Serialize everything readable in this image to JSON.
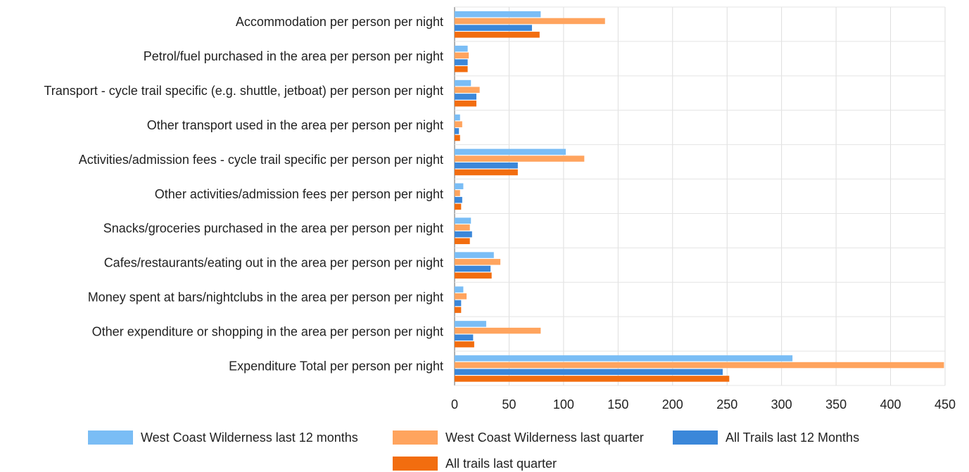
{
  "chart_data": {
    "type": "bar",
    "orientation": "horizontal",
    "title": "",
    "xlabel": "",
    "ylabel": "",
    "xlim": [
      0,
      450
    ],
    "x_ticks": [
      0,
      50,
      100,
      150,
      200,
      250,
      300,
      350,
      400,
      450
    ],
    "grid": true,
    "legend_position": "bottom",
    "categories": [
      "Accommodation per person per night",
      "Petrol/fuel purchased in the area per person per night",
      "Transport - cycle trail specific (e.g. shuttle, jetboat) per person per night",
      "Other transport used in the area per person per night",
      "Activities/admission fees - cycle trail specific per person per night",
      "Other activities/admission fees per person per night",
      "Snacks/groceries purchased in the area  per person per night",
      "Cafes/restaurants/eating out in the area per person per night",
      "Money spent at bars/nightclubs in the area per person per night",
      "Other expenditure or shopping in the area per person per night",
      "Expenditure Total per person per night"
    ],
    "series": [
      {
        "name": "West Coast Wilderness last 12 months",
        "color": "#7abdf5",
        "values": [
          79,
          12,
          15,
          5,
          102,
          8,
          15,
          36,
          8,
          29,
          310
        ]
      },
      {
        "name": "West Coast Wilderness last quarter",
        "color": "#ffa45e",
        "values": [
          138,
          13,
          23,
          7,
          119,
          5,
          14,
          42,
          11,
          79,
          449
        ]
      },
      {
        "name": "All Trails last 12 Months",
        "color": "#3b87d9",
        "values": [
          71,
          12,
          20,
          4,
          58,
          7,
          16,
          33,
          6,
          17,
          246
        ]
      },
      {
        "name": "All trails last quarter",
        "color": "#f26d0f",
        "values": [
          78,
          12,
          20,
          5,
          58,
          6,
          14,
          34,
          6,
          18,
          252
        ]
      }
    ]
  }
}
